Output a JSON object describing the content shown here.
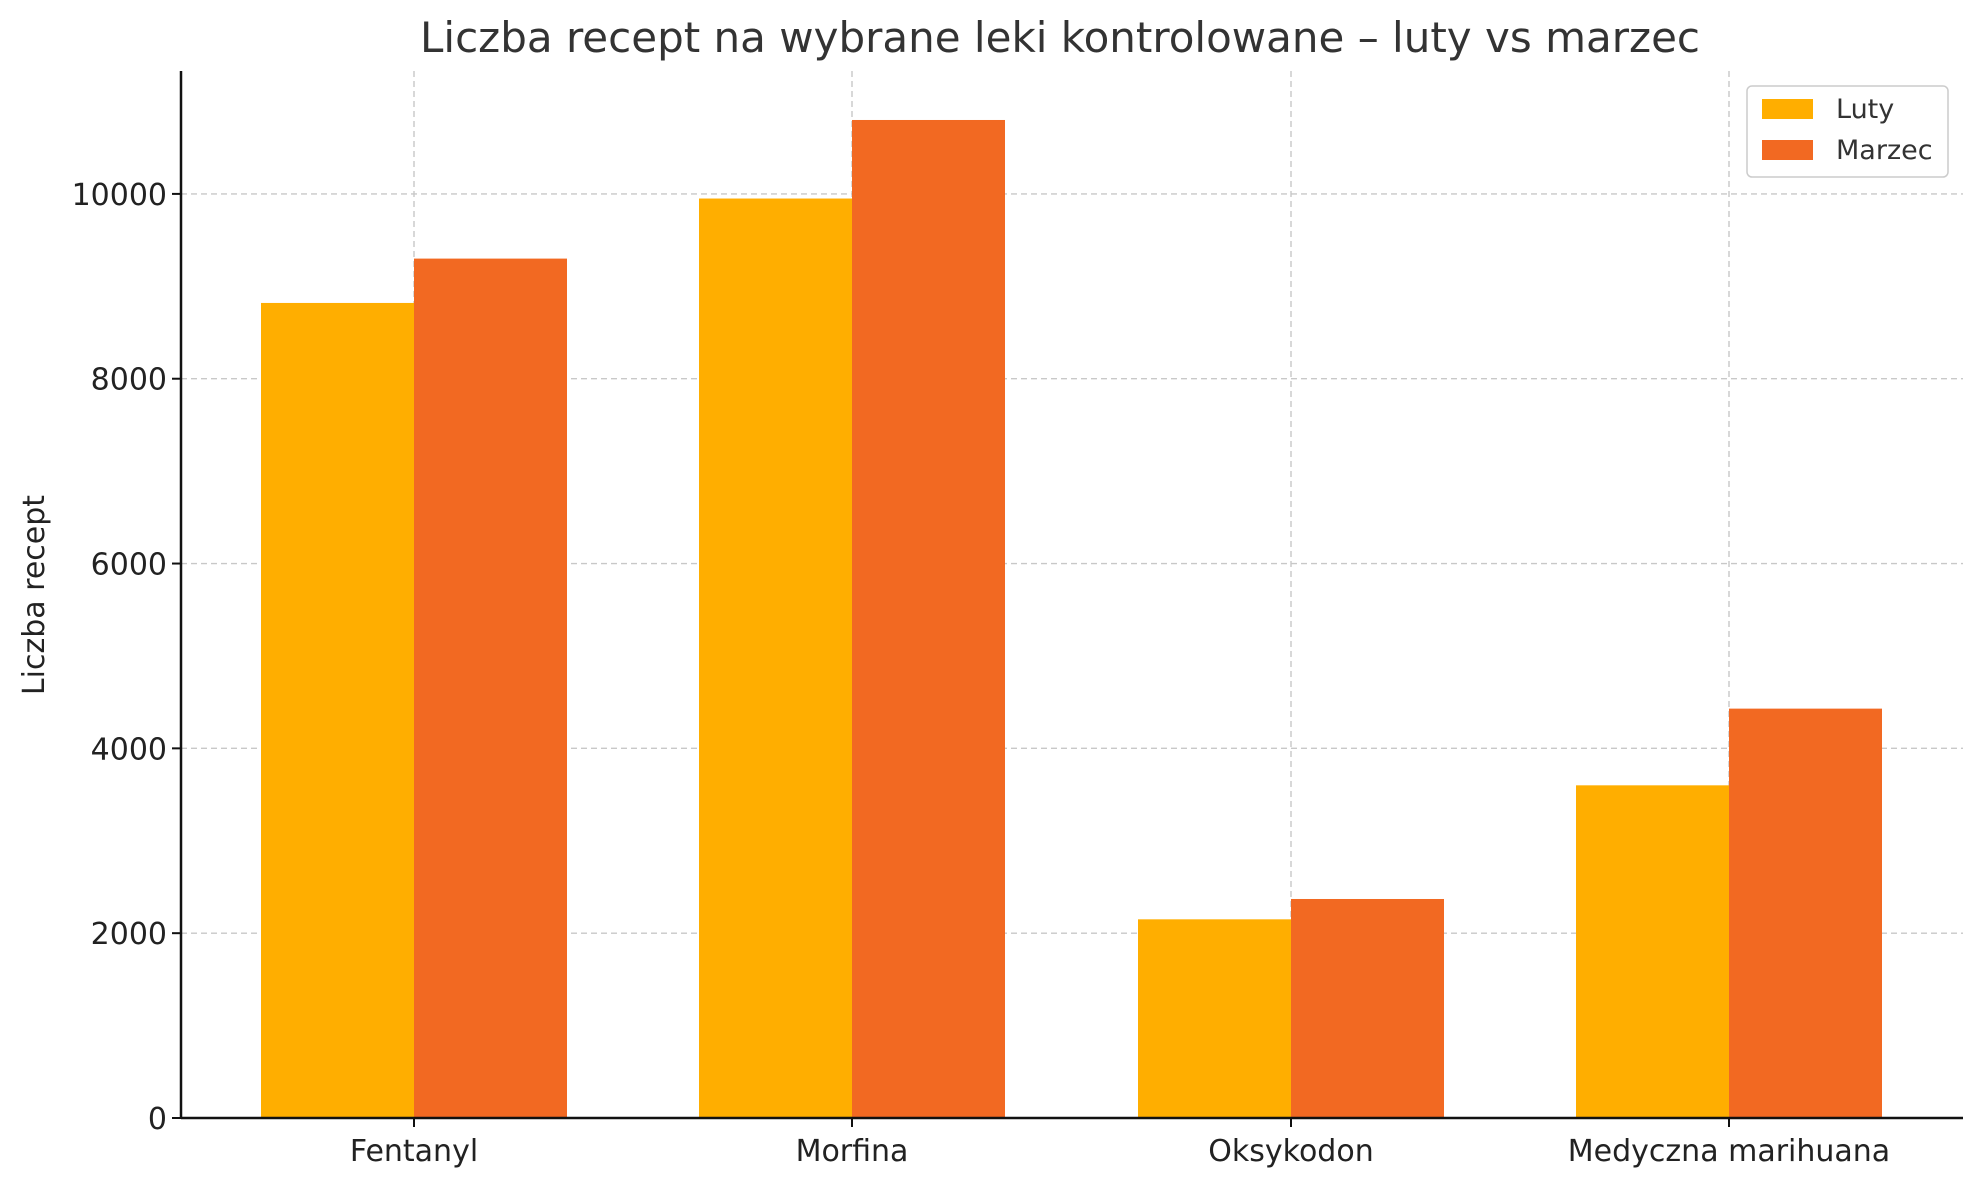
{
  "chart_data": {
    "type": "bar",
    "title": "Liczba recept na wybrane leki kontrolowane – luty vs marzec",
    "xlabel": "",
    "ylabel": "Liczba recept",
    "categories": [
      "Fentanyl",
      "Morfina",
      "Oksykodon",
      "Medyczna marihuana"
    ],
    "series": [
      {
        "name": "Luty",
        "values": [
          8820,
          9950,
          2150,
          3600
        ],
        "color": "#FFAE00"
      },
      {
        "name": "Marzec",
        "values": [
          9300,
          10800,
          2370,
          4430
        ],
        "color": "#F26922"
      }
    ],
    "ylim": [
      0,
      11330
    ],
    "yticks": [
      0,
      2000,
      4000,
      6000,
      8000,
      10000
    ],
    "grid": true,
    "legend_position": "top-right"
  }
}
